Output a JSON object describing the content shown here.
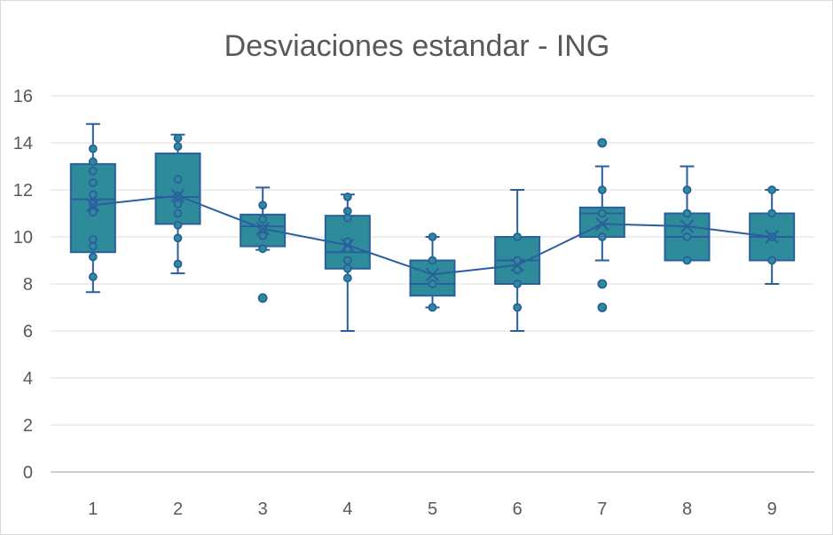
{
  "chart_data": {
    "type": "boxplot",
    "title": "Desviaciones estandar - ING",
    "xlabel": "",
    "ylabel": "",
    "ylim": [
      0,
      16
    ],
    "y_ticks": [
      "0",
      "2",
      "4",
      "6",
      "8",
      "10",
      "12",
      "14",
      "16"
    ],
    "categories": [
      "1",
      "2",
      "3",
      "4",
      "5",
      "6",
      "7",
      "8",
      "9"
    ],
    "boxes": [
      {
        "category": "1",
        "min": 7.65,
        "q1": 9.35,
        "median": 11.6,
        "q3": 13.1,
        "max": 14.8,
        "mean": 11.35,
        "outliers": [],
        "points": [
          8.3,
          9.15,
          9.6,
          9.9,
          11.05,
          11.4,
          11.8,
          12.3,
          12.8,
          13.2,
          13.75
        ]
      },
      {
        "category": "2",
        "min": 8.45,
        "q1": 10.55,
        "median": 11.7,
        "q3": 13.55,
        "max": 14.35,
        "mean": 11.75,
        "outliers": [],
        "points": [
          8.85,
          9.95,
          10.5,
          11.0,
          11.4,
          11.75,
          12.45,
          13.85,
          14.2
        ]
      },
      {
        "category": "3",
        "min": 9.45,
        "q1": 9.6,
        "median": 10.45,
        "q3": 10.95,
        "max": 12.1,
        "mean": 10.35,
        "outliers": [
          7.4
        ],
        "points": [
          9.5,
          10.05,
          10.35,
          10.75,
          11.35
        ]
      },
      {
        "category": "4",
        "min": 6.0,
        "q1": 8.65,
        "median": 9.35,
        "q3": 10.9,
        "max": 11.8,
        "mean": 9.65,
        "outliers": [],
        "points": [
          8.25,
          8.65,
          9.0,
          9.5,
          9.8,
          10.8,
          11.1,
          11.7
        ]
      },
      {
        "category": "5",
        "min": 7.0,
        "q1": 7.5,
        "median": 8.0,
        "q3": 9.0,
        "max": 10.0,
        "mean": 8.4,
        "outliers": [],
        "points": [
          7.0,
          8.0,
          9.0,
          10.0
        ]
      },
      {
        "category": "6",
        "min": 6.0,
        "q1": 8.0,
        "median": 9.0,
        "q3": 10.0,
        "max": 12.0,
        "mean": 8.8,
        "outliers": [],
        "points": [
          7.0,
          8.0,
          8.6,
          9.0,
          10.0
        ]
      },
      {
        "category": "7",
        "min": 9.0,
        "q1": 10.0,
        "median": 11.0,
        "q3": 11.25,
        "max": 13.0,
        "mean": 10.55,
        "outliers": [
          7.0,
          8.0,
          14.0
        ],
        "points": [
          10.0,
          11.0,
          12.0
        ]
      },
      {
        "category": "8",
        "min": 9.0,
        "q1": 9.0,
        "median": 10.0,
        "q3": 11.0,
        "max": 13.0,
        "mean": 10.45,
        "outliers": [],
        "points": [
          9.0,
          10.0,
          11.0,
          12.0
        ]
      },
      {
        "category": "9",
        "min": 8.0,
        "q1": 9.0,
        "median": 10.0,
        "q3": 11.0,
        "max": 12.0,
        "mean": 10.0,
        "outliers": [],
        "points": [
          9.0,
          10.0,
          11.0,
          12.0
        ]
      }
    ],
    "mean_line": true,
    "grid": true,
    "legend": "none",
    "colors": {
      "box_fill": "#2e8b9a",
      "box_stroke": "#2a5f9e",
      "gridline": "#e3e3e3",
      "axis": "#bfbfbf",
      "text": "#595959"
    }
  }
}
